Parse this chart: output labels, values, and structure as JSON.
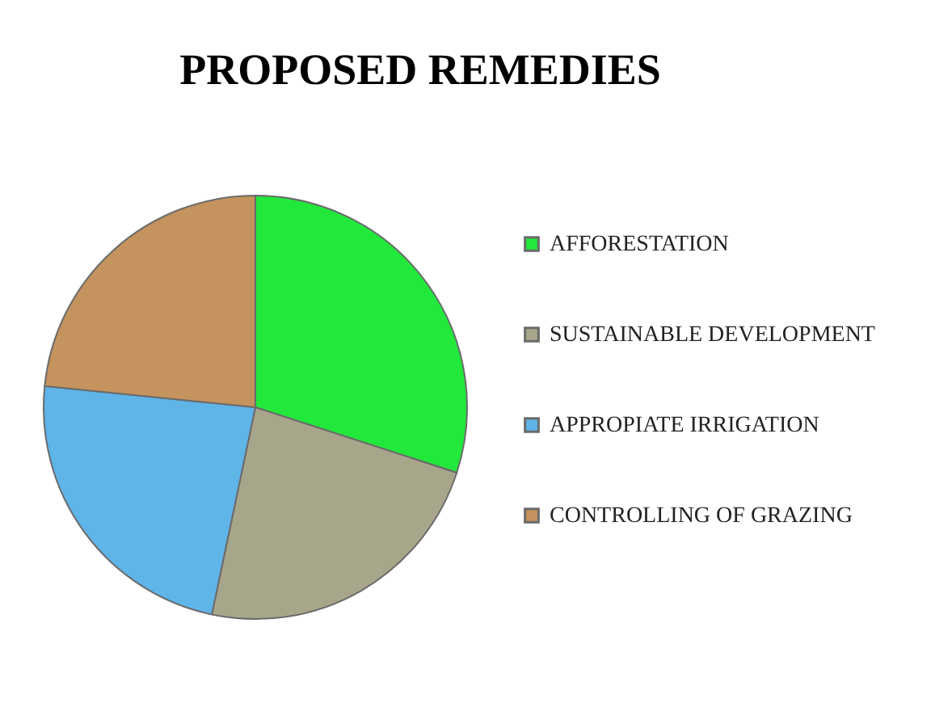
{
  "chart_data": {
    "type": "pie",
    "title": "PROPOSED REMEDIES",
    "categories": [
      "AFFORESTATION",
      "SUSTAINABLE DEVELOPMENT",
      "APPROPIATE IRRIGATION",
      "CONTROLLING OF GRAZING"
    ],
    "values": [
      30,
      23.3,
      23.3,
      23.4
    ],
    "colors": [
      "#22e83c",
      "#a8a68a",
      "#5fb4e8",
      "#c4935e"
    ],
    "legend": "right"
  }
}
